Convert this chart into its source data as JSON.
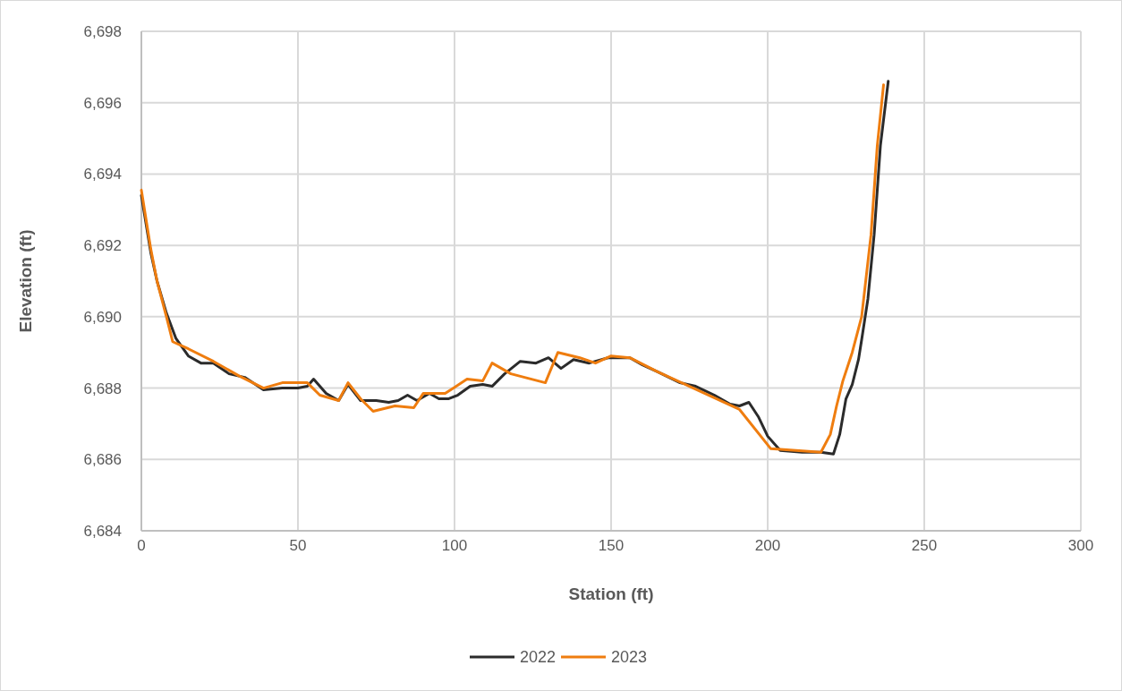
{
  "chart_data": {
    "type": "line",
    "xlabel": "Station (ft)",
    "ylabel": "Elevation (ft)",
    "xlim": [
      0,
      300
    ],
    "xticks": [
      0,
      50,
      100,
      150,
      200,
      250,
      300
    ],
    "ylim": [
      6684,
      6698
    ],
    "yticks": [
      {
        "value": 6684,
        "label": "6,684"
      },
      {
        "value": 6686,
        "label": "6,686"
      },
      {
        "value": 6688,
        "label": "6,688"
      },
      {
        "value": 6690,
        "label": "6,690"
      },
      {
        "value": 6692,
        "label": "6,692"
      },
      {
        "value": 6694,
        "label": "6,694"
      },
      {
        "value": 6696,
        "label": "6,696"
      },
      {
        "value": 6698,
        "label": "6,698"
      }
    ],
    "grid": true,
    "legend": "bottom",
    "marker": "none",
    "line_style": "solid",
    "series": [
      {
        "name": "2022",
        "color": "#2b2b2b",
        "x": [
          0,
          3,
          5,
          8,
          11,
          15,
          19,
          23,
          28,
          33,
          39,
          45,
          50,
          53,
          55,
          59,
          63,
          66,
          70,
          75,
          79,
          82,
          85,
          88,
          92,
          95,
          98,
          101,
          105,
          109,
          112,
          116,
          121,
          126,
          130,
          134,
          138,
          143,
          149,
          156,
          160,
          165,
          172,
          177,
          183,
          188,
          191,
          194,
          197,
          200,
          204,
          211,
          217,
          221,
          223,
          225,
          227,
          229,
          230,
          232,
          234,
          236,
          238.5
        ],
        "values": [
          6693.4,
          6691.8,
          6691,
          6690.1,
          6689.4,
          6688.9,
          6688.7,
          6688.7,
          6688.4,
          6688.3,
          6687.95,
          6688,
          6688,
          6688.05,
          6688.25,
          6687.85,
          6687.65,
          6688.1,
          6687.65,
          6687.65,
          6687.6,
          6687.65,
          6687.8,
          6687.65,
          6687.85,
          6687.7,
          6687.7,
          6687.8,
          6688.05,
          6688.1,
          6688.05,
          6688.4,
          6688.75,
          6688.7,
          6688.85,
          6688.55,
          6688.8,
          6688.7,
          6688.85,
          6688.85,
          6688.65,
          6688.45,
          6688.15,
          6688.05,
          6687.8,
          6687.55,
          6687.5,
          6687.6,
          6687.2,
          6686.65,
          6686.25,
          6686.2,
          6686.2,
          6686.15,
          6686.7,
          6687.7,
          6688.1,
          6688.8,
          6689.35,
          6690.5,
          6692.3,
          6694.8,
          6696.6
        ]
      },
      {
        "name": "2023",
        "color": "#ef7d0f",
        "x": [
          0,
          3,
          5,
          8,
          10,
          15,
          23,
          31,
          39,
          45,
          50,
          53,
          57,
          63,
          66,
          70,
          74,
          81,
          87,
          90,
          97,
          104,
          109,
          112,
          118,
          129,
          133,
          140,
          145,
          150,
          156,
          165,
          175,
          191,
          201,
          217,
          220,
          222,
          224,
          227,
          230,
          233,
          235,
          237
        ],
        "values": [
          6693.55,
          6691.9,
          6691,
          6690,
          6689.3,
          6689.1,
          6688.75,
          6688.35,
          6688,
          6688.15,
          6688.15,
          6688.15,
          6687.8,
          6687.65,
          6688.15,
          6687.7,
          6687.35,
          6687.5,
          6687.45,
          6687.85,
          6687.85,
          6688.25,
          6688.2,
          6688.7,
          6688.4,
          6688.15,
          6689,
          6688.85,
          6688.7,
          6688.9,
          6688.85,
          6688.45,
          6688.05,
          6687.4,
          6686.3,
          6686.2,
          6686.7,
          6687.5,
          6688.2,
          6689,
          6690,
          6692.3,
          6694.8,
          6696.5
        ]
      }
    ]
  }
}
